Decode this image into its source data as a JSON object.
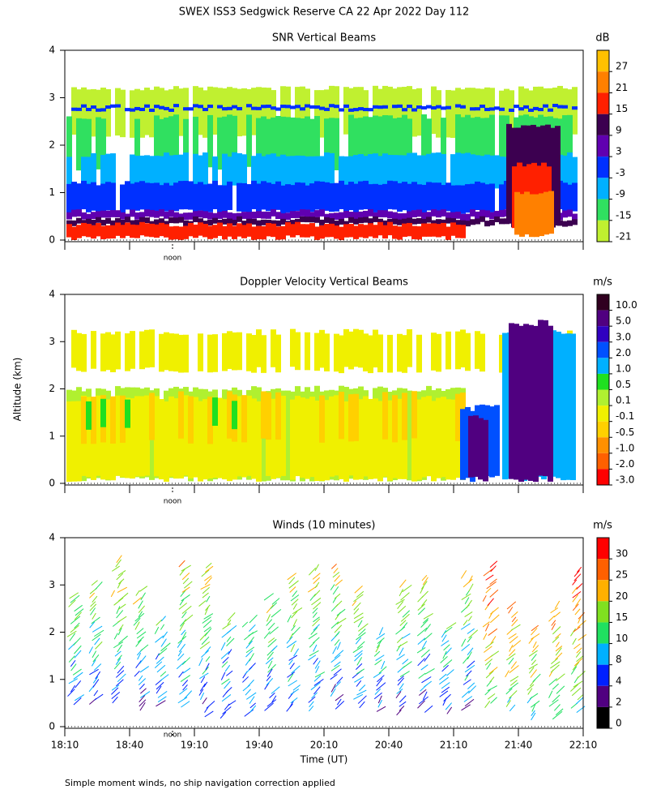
{
  "title": "SWEX ISS3 Sedgwick Reserve CA  22 Apr 2022 Day 112",
  "y_label": "Altitude (km)",
  "x_label": "Time (UT)",
  "noon_label": "noon",
  "footnote": "Simple moment winds, no ship navigation correction applied",
  "chart_data": [
    {
      "type": "heatmap",
      "title": "SNR Vertical Beams",
      "ylim": [
        0,
        4
      ],
      "yticks": [
        0,
        1,
        2,
        3,
        4
      ],
      "colorbar": {
        "label": "dB",
        "ticks": [
          27,
          21,
          15,
          9,
          3,
          -3,
          -9,
          -15,
          -21
        ],
        "colors": [
          "#ffc000",
          "#ff8000",
          "#ff2000",
          "#3c0050",
          "#6000b0",
          "#0030ff",
          "#00b0ff",
          "#30e060",
          "#c0f030"
        ]
      }
    },
    {
      "type": "heatmap",
      "title": "Doppler Velocity Vertical Beams",
      "ylim": [
        0,
        4
      ],
      "yticks": [
        0,
        1,
        2,
        3,
        4
      ],
      "colorbar": {
        "label": "m/s",
        "ticks": [
          {
            "value": 10,
            "label": "10.0"
          },
          {
            "value": 5,
            "label": "5.0"
          },
          {
            "value": 3,
            "label": "3.0"
          },
          {
            "value": 2,
            "label": "2.0"
          },
          {
            "value": 1,
            "label": "1.0"
          },
          0.5,
          0.1,
          -0.1,
          -0.5,
          {
            "value": -1,
            "label": "-1.0"
          },
          {
            "value": -2,
            "label": "-2.0"
          },
          {
            "value": -3,
            "label": "-3.0"
          }
        ],
        "colors": [
          "#300020",
          "#500080",
          "#3000c0",
          "#0050ff",
          "#00b0ff",
          "#20e020",
          "#b0f030",
          "#f0f000",
          "#ffd000",
          "#ff9000",
          "#ff6000",
          "#ff0000"
        ]
      }
    },
    {
      "type": "barbs",
      "title": "Winds (10 minutes)",
      "ylim": [
        0,
        4
      ],
      "yticks": [
        0,
        1,
        2,
        3,
        4
      ],
      "xticks": [
        "18:10",
        "18:40",
        "19:10",
        "19:40",
        "20:10",
        "20:40",
        "21:10",
        "21:40",
        "22:10"
      ],
      "colorbar": {
        "label": "m/s",
        "ticks": [
          30,
          25,
          20,
          15,
          10,
          8,
          4,
          2,
          0
        ],
        "colors": [
          "#ff0000",
          "#ff6000",
          "#ffb000",
          "#80e020",
          "#20e060",
          "#00b0ff",
          "#0020ff",
          "#500080",
          "#000000"
        ]
      }
    }
  ]
}
